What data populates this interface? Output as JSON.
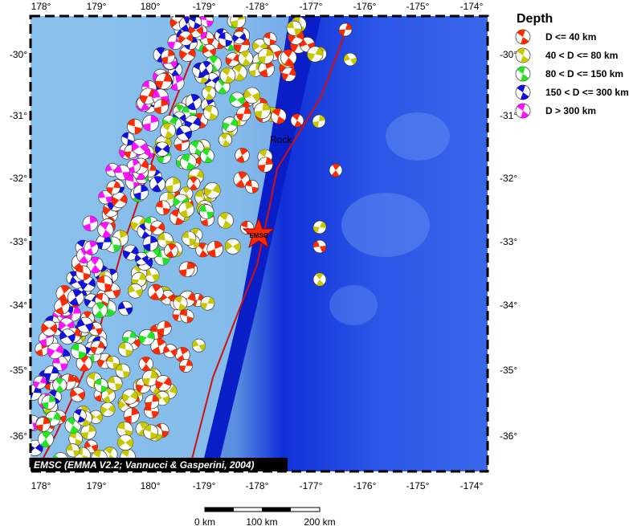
{
  "map": {
    "x_ticks": [
      "178°",
      "179°",
      "180°",
      "-179°",
      "-178°",
      "-177°",
      "-176°",
      "-175°",
      "-174°"
    ],
    "y_ticks": [
      "-30°",
      "-31°",
      "-32°",
      "-33°",
      "-34°",
      "-35°",
      "-36°"
    ],
    "place_label": "Rock",
    "marker": "EMSC",
    "credit": "EMSC (EMMA V2.2; Vannucci & Gasperini, 2004)"
  },
  "legend": {
    "title": "Depth",
    "items": [
      {
        "label": "D <= 40 km",
        "color": "#ff2a00"
      },
      {
        "label": "40 < D <= 80 km",
        "color": "#c8c800"
      },
      {
        "label": "80 < D <= 150 km",
        "color": "#22e622"
      },
      {
        "label": "150 < D <= 300 km",
        "color": "#1010e0"
      },
      {
        "label": "D > 300 km",
        "color": "#ff10ff"
      }
    ]
  },
  "scale_bar": [
    "0 km",
    "100 km",
    "200 km"
  ]
}
